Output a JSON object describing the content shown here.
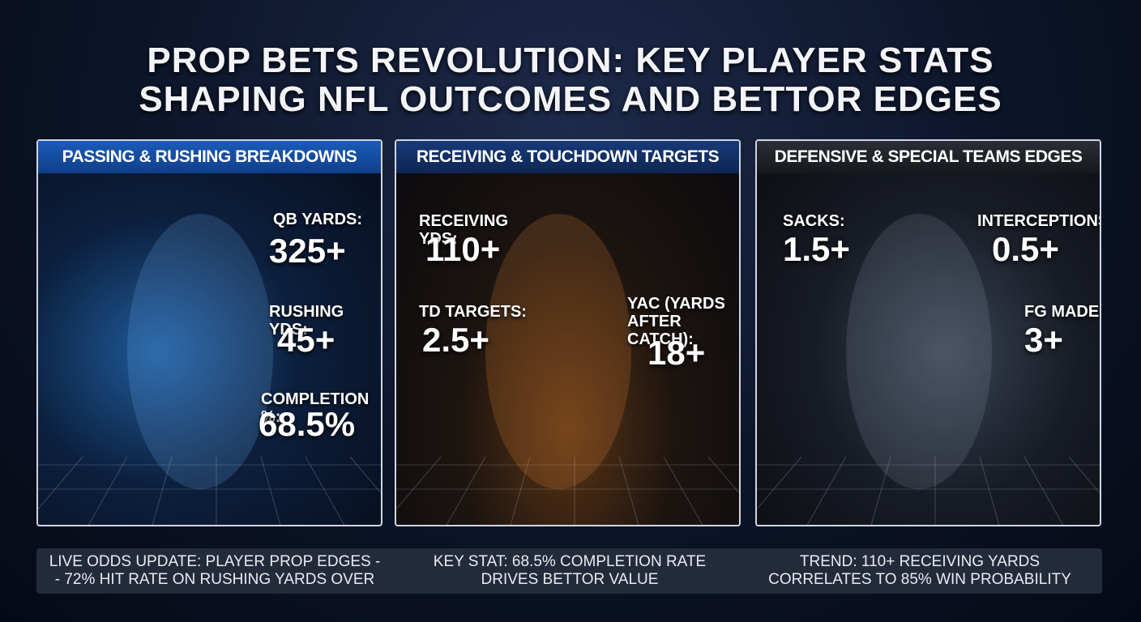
{
  "title_lines": [
    "PROP BETS REVOLUTION: KEY PLAYER STATS",
    "SHAPING NFL OUTCOMES AND BETTOR EDGES"
  ],
  "panels": [
    {
      "heading": "PASSING & RUSHING BREAKDOWNS",
      "stats": [
        {
          "label": "QB YARDS:",
          "value": "325+"
        },
        {
          "label": "RUSHING YDS:",
          "value": "45+"
        },
        {
          "label": "COMPLETION %:",
          "value": "68.5%"
        }
      ]
    },
    {
      "heading": "RECEIVING & TOUCHDOWN TARGETS",
      "stats": [
        {
          "label": "RECEIVING YDS:",
          "value": "110+"
        },
        {
          "label": "TD TARGETS:",
          "value": "2.5+"
        },
        {
          "label": "YAC (YARDS AFTER CATCH):",
          "value": "18+"
        }
      ]
    },
    {
      "heading": "DEFENSIVE & SPECIAL TEAMS EDGES",
      "stats": [
        {
          "label": "SACKS:",
          "value": "1.5+"
        },
        {
          "label": "INTERCEPTIONS:",
          "value": "0.5+"
        },
        {
          "label": "FG MADE:",
          "value": "3+"
        }
      ]
    }
  ],
  "footer": [
    [
      "LIVE ODDS UPDATE: PLAYER PROP EDGES -",
      "- 72% HIT RATE ON RUSHING YARDS OVER"
    ],
    [
      "KEY STAT: 68.5% COMPLETION RATE",
      "DRIVES BETTOR VALUE"
    ],
    [
      "TREND: 110+ RECEIVING YARDS",
      "CORRELATES TO 85% WIN PROBABILITY"
    ]
  ]
}
